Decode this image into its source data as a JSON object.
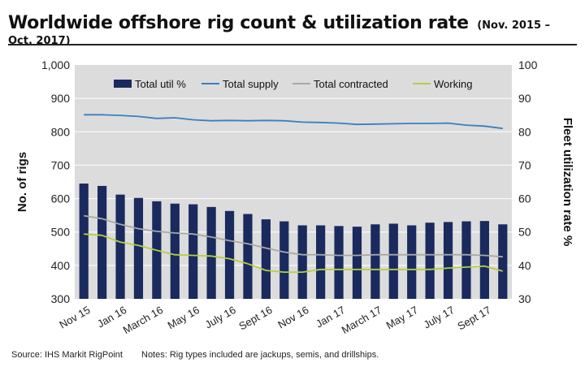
{
  "title": "Worldwide offshore rig count & utilization rate",
  "subtitle": "(Nov. 2015 – Oct. 2017)",
  "footer": {
    "source": "Source: IHS Markit RigPoint",
    "notes": "Notes: Rig types included are jackups, semis, and drillships."
  },
  "chart_data": {
    "type": "bar",
    "x_tick_labels": [
      "Nov 15",
      "Jan 16",
      "March 16",
      "May 16",
      "July 16",
      "Sept 16",
      "Nov 16",
      "Jan 17",
      "March 17",
      "May 17",
      "July 17",
      "Sept 17"
    ],
    "n_points": 24,
    "ylabel_left": "No. of rigs",
    "ylabel_right": "Fleet utilization rate %",
    "ylim_left": [
      300,
      1000
    ],
    "ylim_right": [
      30,
      100
    ],
    "yticks_left": [
      "300",
      "400",
      "500",
      "600",
      "700",
      "800",
      "900",
      "1,000"
    ],
    "yticks_right": [
      "30",
      "40",
      "50",
      "60",
      "70",
      "80",
      "90",
      "100"
    ],
    "grid": true,
    "legend_placement": "top",
    "colors": {
      "Total util %": "#1a2a5e",
      "Total supply": "#3a7fbf",
      "Total contracted": "#a8a8a8",
      "Working": "#b6cd45"
    },
    "series": [
      {
        "name": "Total util %",
        "kind": "bar",
        "axis": "right",
        "values": [
          64.5,
          63.8,
          61.2,
          60.2,
          59.2,
          58.5,
          58.3,
          57.5,
          56.3,
          55.4,
          53.8,
          53.2,
          52.0,
          52.0,
          51.8,
          51.6,
          52.3,
          52.5,
          52.0,
          52.8,
          53.0,
          53.2,
          53.3,
          52.3
        ]
      },
      {
        "name": "Total supply",
        "kind": "line",
        "axis": "left",
        "values": [
          851,
          851,
          849,
          846,
          840,
          842,
          836,
          833,
          834,
          833,
          834,
          833,
          829,
          828,
          826,
          822,
          823,
          824,
          825,
          825,
          826,
          820,
          817,
          810
        ]
      },
      {
        "name": "Total contracted",
        "kind": "line",
        "axis": "left",
        "values": [
          549,
          540,
          523,
          510,
          502,
          497,
          494,
          485,
          474,
          465,
          452,
          440,
          432,
          432,
          430,
          430,
          432,
          432,
          432,
          432,
          432,
          432,
          430,
          426
        ]
      },
      {
        "name": "Working",
        "kind": "line",
        "axis": "left",
        "values": [
          494,
          490,
          470,
          460,
          445,
          432,
          430,
          428,
          420,
          405,
          385,
          380,
          380,
          388,
          388,
          388,
          388,
          388,
          388,
          388,
          392,
          395,
          398,
          383
        ]
      }
    ]
  }
}
